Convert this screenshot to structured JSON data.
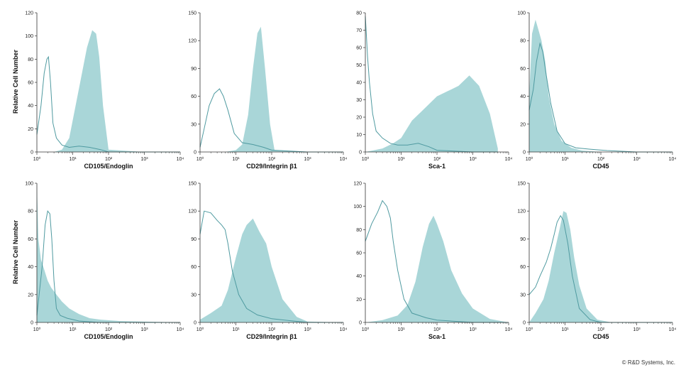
{
  "chart_data": [
    {
      "type": "area",
      "xscale": "log",
      "xlim": [
        1,
        10000
      ],
      "ylim": [
        0,
        120
      ],
      "yticks": [
        0,
        20,
        40,
        60,
        80,
        100,
        120
      ],
      "xticks": [
        1,
        10,
        100,
        1000,
        10000
      ],
      "xticklabels": [
        "10⁰",
        "10¹",
        "10²",
        "10³",
        "10⁴"
      ],
      "xlabel": "CD105/Endoglin",
      "ylabel": "Relative Cell Number",
      "filled": {
        "x": [
          1,
          3,
          5,
          8,
          15,
          25,
          35,
          45,
          55,
          70,
          100,
          1000,
          10000
        ],
        "y": [
          0,
          0,
          2,
          12,
          55,
          90,
          105,
          102,
          82,
          40,
          2,
          0,
          0
        ]
      },
      "outline": {
        "x": [
          1,
          1.3,
          1.6,
          1.9,
          2.1,
          2.4,
          2.8,
          3.5,
          5,
          8,
          15,
          30,
          60,
          100,
          1000,
          10000
        ],
        "y": [
          15,
          40,
          68,
          80,
          82,
          60,
          25,
          12,
          6,
          4,
          5,
          4,
          2,
          0,
          0,
          0
        ]
      }
    },
    {
      "type": "area",
      "xscale": "log",
      "xlim": [
        1,
        10000
      ],
      "ylim": [
        0,
        150
      ],
      "yticks": [
        0,
        30,
        60,
        90,
        120,
        150
      ],
      "xticks": [
        1,
        10,
        100,
        1000,
        10000
      ],
      "xticklabels": [
        "10⁰",
        "10¹",
        "10²",
        "10³",
        "10⁴"
      ],
      "xlabel": "CD29/Integrin β1",
      "ylabel": "",
      "filled": {
        "x": [
          1,
          5,
          10,
          15,
          22,
          30,
          40,
          50,
          65,
          90,
          120,
          1000,
          10000
        ],
        "y": [
          0,
          0,
          2,
          8,
          40,
          90,
          128,
          135,
          90,
          30,
          2,
          0,
          0
        ]
      },
      "outline": {
        "x": [
          1,
          1.3,
          1.8,
          2.5,
          3.5,
          4.5,
          6,
          9,
          15,
          30,
          60,
          100,
          1000,
          10000
        ],
        "y": [
          5,
          25,
          50,
          63,
          68,
          60,
          45,
          20,
          10,
          8,
          5,
          2,
          0,
          0
        ]
      }
    },
    {
      "type": "area",
      "xscale": "log",
      "xlim": [
        1,
        10000
      ],
      "ylim": [
        0,
        80
      ],
      "yticks": [
        0,
        10,
        20,
        30,
        40,
        50,
        60,
        70,
        80
      ],
      "xticks": [
        1,
        10,
        100,
        1000,
        10000
      ],
      "xticklabels": [
        "10⁰",
        "10¹",
        "10²",
        "10³",
        "10⁴"
      ],
      "xlabel": "Sca-1",
      "ylabel": "",
      "filled": {
        "x": [
          1,
          3,
          6,
          10,
          20,
          40,
          100,
          200,
          400,
          800,
          1500,
          3000,
          5000
        ],
        "y": [
          0,
          2,
          5,
          8,
          18,
          24,
          32,
          35,
          38,
          44,
          38,
          22,
          2
        ]
      },
      "outline": {
        "x": [
          1,
          1.05,
          1.15,
          1.3,
          1.6,
          2,
          3,
          5,
          8,
          15,
          30,
          60,
          100,
          1000,
          5000
        ],
        "y": [
          78,
          70,
          55,
          40,
          22,
          12,
          8,
          5,
          4,
          4,
          5,
          3,
          1,
          0,
          0
        ]
      }
    },
    {
      "type": "area",
      "xscale": "log",
      "xlim": [
        1,
        10000
      ],
      "ylim": [
        0,
        100
      ],
      "yticks": [
        0,
        20,
        40,
        60,
        80,
        100
      ],
      "xticks": [
        1,
        10,
        100,
        1000,
        10000
      ],
      "xticklabels": [
        "10⁰",
        "10¹",
        "10²",
        "10³",
        "10⁴"
      ],
      "xlabel": "CD45",
      "ylabel": "",
      "filled": {
        "x": [
          1,
          1.2,
          1.5,
          1.8,
          2.2,
          2.8,
          3.5,
          5,
          8,
          15,
          30,
          100,
          1000,
          10000
        ],
        "y": [
          40,
          85,
          95,
          88,
          80,
          65,
          40,
          20,
          8,
          3,
          1,
          0,
          0,
          0
        ]
      },
      "outline": {
        "x": [
          1,
          1.3,
          1.6,
          2,
          2.4,
          3,
          4,
          6,
          10,
          20,
          50,
          150,
          1000,
          10000
        ],
        "y": [
          30,
          45,
          65,
          78,
          72,
          55,
          35,
          15,
          6,
          3,
          2,
          1,
          0,
          0
        ]
      }
    },
    {
      "type": "area",
      "xscale": "log",
      "xlim": [
        1,
        10000
      ],
      "ylim": [
        0,
        100
      ],
      "yticks": [
        0,
        20,
        40,
        60,
        80,
        100
      ],
      "xticks": [
        1,
        10,
        100,
        1000,
        10000
      ],
      "xticklabels": [
        "10⁰",
        "10¹",
        "10²",
        "10³",
        "10⁴"
      ],
      "xlabel": "CD105/Endoglin",
      "ylabel": "Relative Cell Number",
      "filled": {
        "x": [
          1,
          1.1,
          1.3,
          1.6,
          2,
          2.5,
          3.5,
          5,
          8,
          15,
          30,
          60,
          200,
          10000
        ],
        "y": [
          100,
          60,
          45,
          38,
          30,
          25,
          20,
          15,
          10,
          6,
          3,
          2,
          1,
          0
        ]
      },
      "outline": {
        "x": [
          1,
          1.4,
          1.7,
          2,
          2.3,
          2.6,
          3,
          3.5,
          4.5,
          7,
          15,
          50,
          10000
        ],
        "y": [
          5,
          40,
          70,
          80,
          78,
          60,
          30,
          10,
          5,
          3,
          1,
          0,
          0
        ]
      }
    },
    {
      "type": "area",
      "xscale": "log",
      "xlim": [
        1,
        10000
      ],
      "ylim": [
        0,
        150
      ],
      "yticks": [
        0,
        30,
        60,
        90,
        120,
        150
      ],
      "xticks": [
        1,
        10,
        100,
        1000,
        10000
      ],
      "xticklabels": [
        "10⁰",
        "10¹",
        "10²",
        "10³",
        "10⁴"
      ],
      "xlabel": "CD29/Integrin β1",
      "ylabel": "",
      "filled": {
        "x": [
          1,
          2,
          4,
          6,
          10,
          15,
          20,
          30,
          45,
          70,
          100,
          200,
          500,
          1000,
          10000
        ],
        "y": [
          3,
          10,
          18,
          35,
          70,
          95,
          105,
          112,
          98,
          85,
          60,
          25,
          6,
          1,
          0
        ]
      },
      "outline": {
        "x": [
          1,
          1.3,
          2,
          3,
          4,
          5,
          6,
          8,
          12,
          20,
          40,
          100,
          300,
          1000,
          10000
        ],
        "y": [
          95,
          120,
          118,
          110,
          105,
          100,
          85,
          55,
          30,
          15,
          8,
          4,
          2,
          0,
          0
        ]
      }
    },
    {
      "type": "area",
      "xscale": "log",
      "xlim": [
        1,
        10000
      ],
      "ylim": [
        0,
        120
      ],
      "yticks": [
        0,
        20,
        40,
        60,
        80,
        100,
        120
      ],
      "xticks": [
        1,
        10,
        100,
        1000,
        10000
      ],
      "xticklabels": [
        "10⁰",
        "10¹",
        "10²",
        "10³",
        "10⁴"
      ],
      "xlabel": "Sca-1",
      "ylabel": "",
      "filled": {
        "x": [
          1,
          3,
          8,
          15,
          25,
          40,
          60,
          80,
          100,
          150,
          250,
          500,
          1000,
          3000,
          10000
        ],
        "y": [
          0,
          2,
          6,
          15,
          35,
          65,
          85,
          92,
          85,
          70,
          45,
          25,
          12,
          3,
          0
        ]
      },
      "outline": {
        "x": [
          1,
          1.5,
          2.2,
          3,
          4,
          5,
          6,
          8,
          12,
          20,
          50,
          100,
          1000,
          10000
        ],
        "y": [
          70,
          85,
          95,
          105,
          100,
          90,
          70,
          45,
          20,
          8,
          4,
          2,
          0,
          0
        ]
      }
    },
    {
      "type": "area",
      "xscale": "log",
      "xlim": [
        1,
        10000
      ],
      "ylim": [
        0,
        150
      ],
      "yticks": [
        0,
        30,
        60,
        90,
        120,
        150
      ],
      "xticks": [
        1,
        10,
        100,
        1000,
        10000
      ],
      "xticklabels": [
        "10⁰",
        "10¹",
        "10²",
        "10³",
        "10⁴"
      ],
      "xlabel": "CD45",
      "ylabel": "",
      "filled": {
        "x": [
          1,
          1.5,
          2.5,
          3.5,
          5,
          7,
          9,
          11,
          14,
          18,
          25,
          40,
          80,
          200,
          10000
        ],
        "y": [
          0,
          10,
          25,
          45,
          75,
          100,
          120,
          118,
          100,
          70,
          40,
          15,
          3,
          0,
          0
        ]
      },
      "outline": {
        "x": [
          1,
          1.5,
          2,
          3,
          4,
          5,
          6,
          7.5,
          9,
          12,
          16,
          25,
          50,
          100,
          10000
        ],
        "y": [
          30,
          38,
          50,
          65,
          80,
          95,
          108,
          115,
          110,
          85,
          50,
          15,
          3,
          0,
          0
        ]
      }
    }
  ],
  "colors": {
    "fill": "#a9d6d8",
    "outline": "#4f9aa0",
    "axis": "#333333"
  },
  "copyright": "© R&D Systems, Inc."
}
